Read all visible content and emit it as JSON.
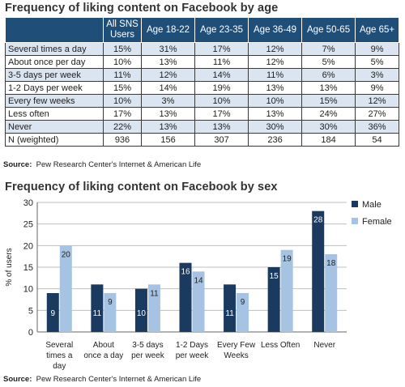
{
  "table": {
    "title": "Frequency of liking content on Facebook by age",
    "headers": [
      "",
      "All SNS Users",
      "Age 18-22",
      "Age 23-35",
      "Age 36-49",
      "Age 50-65",
      "Age 65+"
    ],
    "rows": [
      [
        "Several times a day",
        "15%",
        "31%",
        "17%",
        "12%",
        "7%",
        "9%"
      ],
      [
        "About once per day",
        "10%",
        "13%",
        "11%",
        "12%",
        "5%",
        "5%"
      ],
      [
        "3-5 days per week",
        "11%",
        "12%",
        "14%",
        "11%",
        "6%",
        "3%"
      ],
      [
        "1-2 Days per week",
        "15%",
        "14%",
        "19%",
        "13%",
        "13%",
        "9%"
      ],
      [
        "Every few weeks",
        "10%",
        "3%",
        "10%",
        "10%",
        "15%",
        "12%"
      ],
      [
        "Less often",
        "17%",
        "13%",
        "17%",
        "13%",
        "24%",
        "27%"
      ],
      [
        "Never",
        "22%",
        "13%",
        "13%",
        "30%",
        "30%",
        "36%"
      ],
      [
        "N (weighted)",
        "936",
        "156",
        "307",
        "236",
        "184",
        "54"
      ]
    ],
    "source_label": "Source:",
    "source_text": "Pew Research Center's Internet & American Life"
  },
  "chart_title": "Frequency of liking content on Facebook by sex",
  "chart_source_label": "Source:",
  "chart_source_text": "Pew Research Center's Internet & American Life",
  "chart_data": {
    "type": "bar",
    "title": "Frequency of liking content on Facebook by sex",
    "xlabel": "",
    "ylabel": "% of users",
    "ylim": [
      0,
      30
    ],
    "yticks": [
      0,
      5,
      10,
      15,
      20,
      25,
      30
    ],
    "grid": true,
    "legend": "right",
    "categories": [
      [
        "Several",
        "times a",
        "day"
      ],
      [
        "About",
        "once a day"
      ],
      [
        "3-5 days",
        "per week"
      ],
      [
        "1-2 Days",
        "per week"
      ],
      [
        "Every Few",
        "Weeks"
      ],
      [
        "Less Often"
      ],
      [
        "Never"
      ]
    ],
    "series": [
      {
        "name": "Male",
        "color": "#1b3a5f",
        "labelColor": "#ffffff",
        "values": [
          9,
          11,
          10,
          16,
          11,
          15,
          28
        ]
      },
      {
        "name": "Female",
        "color": "#a7c3e3",
        "labelColor": "#222222",
        "values": [
          20,
          9,
          11,
          14,
          9,
          19,
          18
        ]
      }
    ]
  }
}
